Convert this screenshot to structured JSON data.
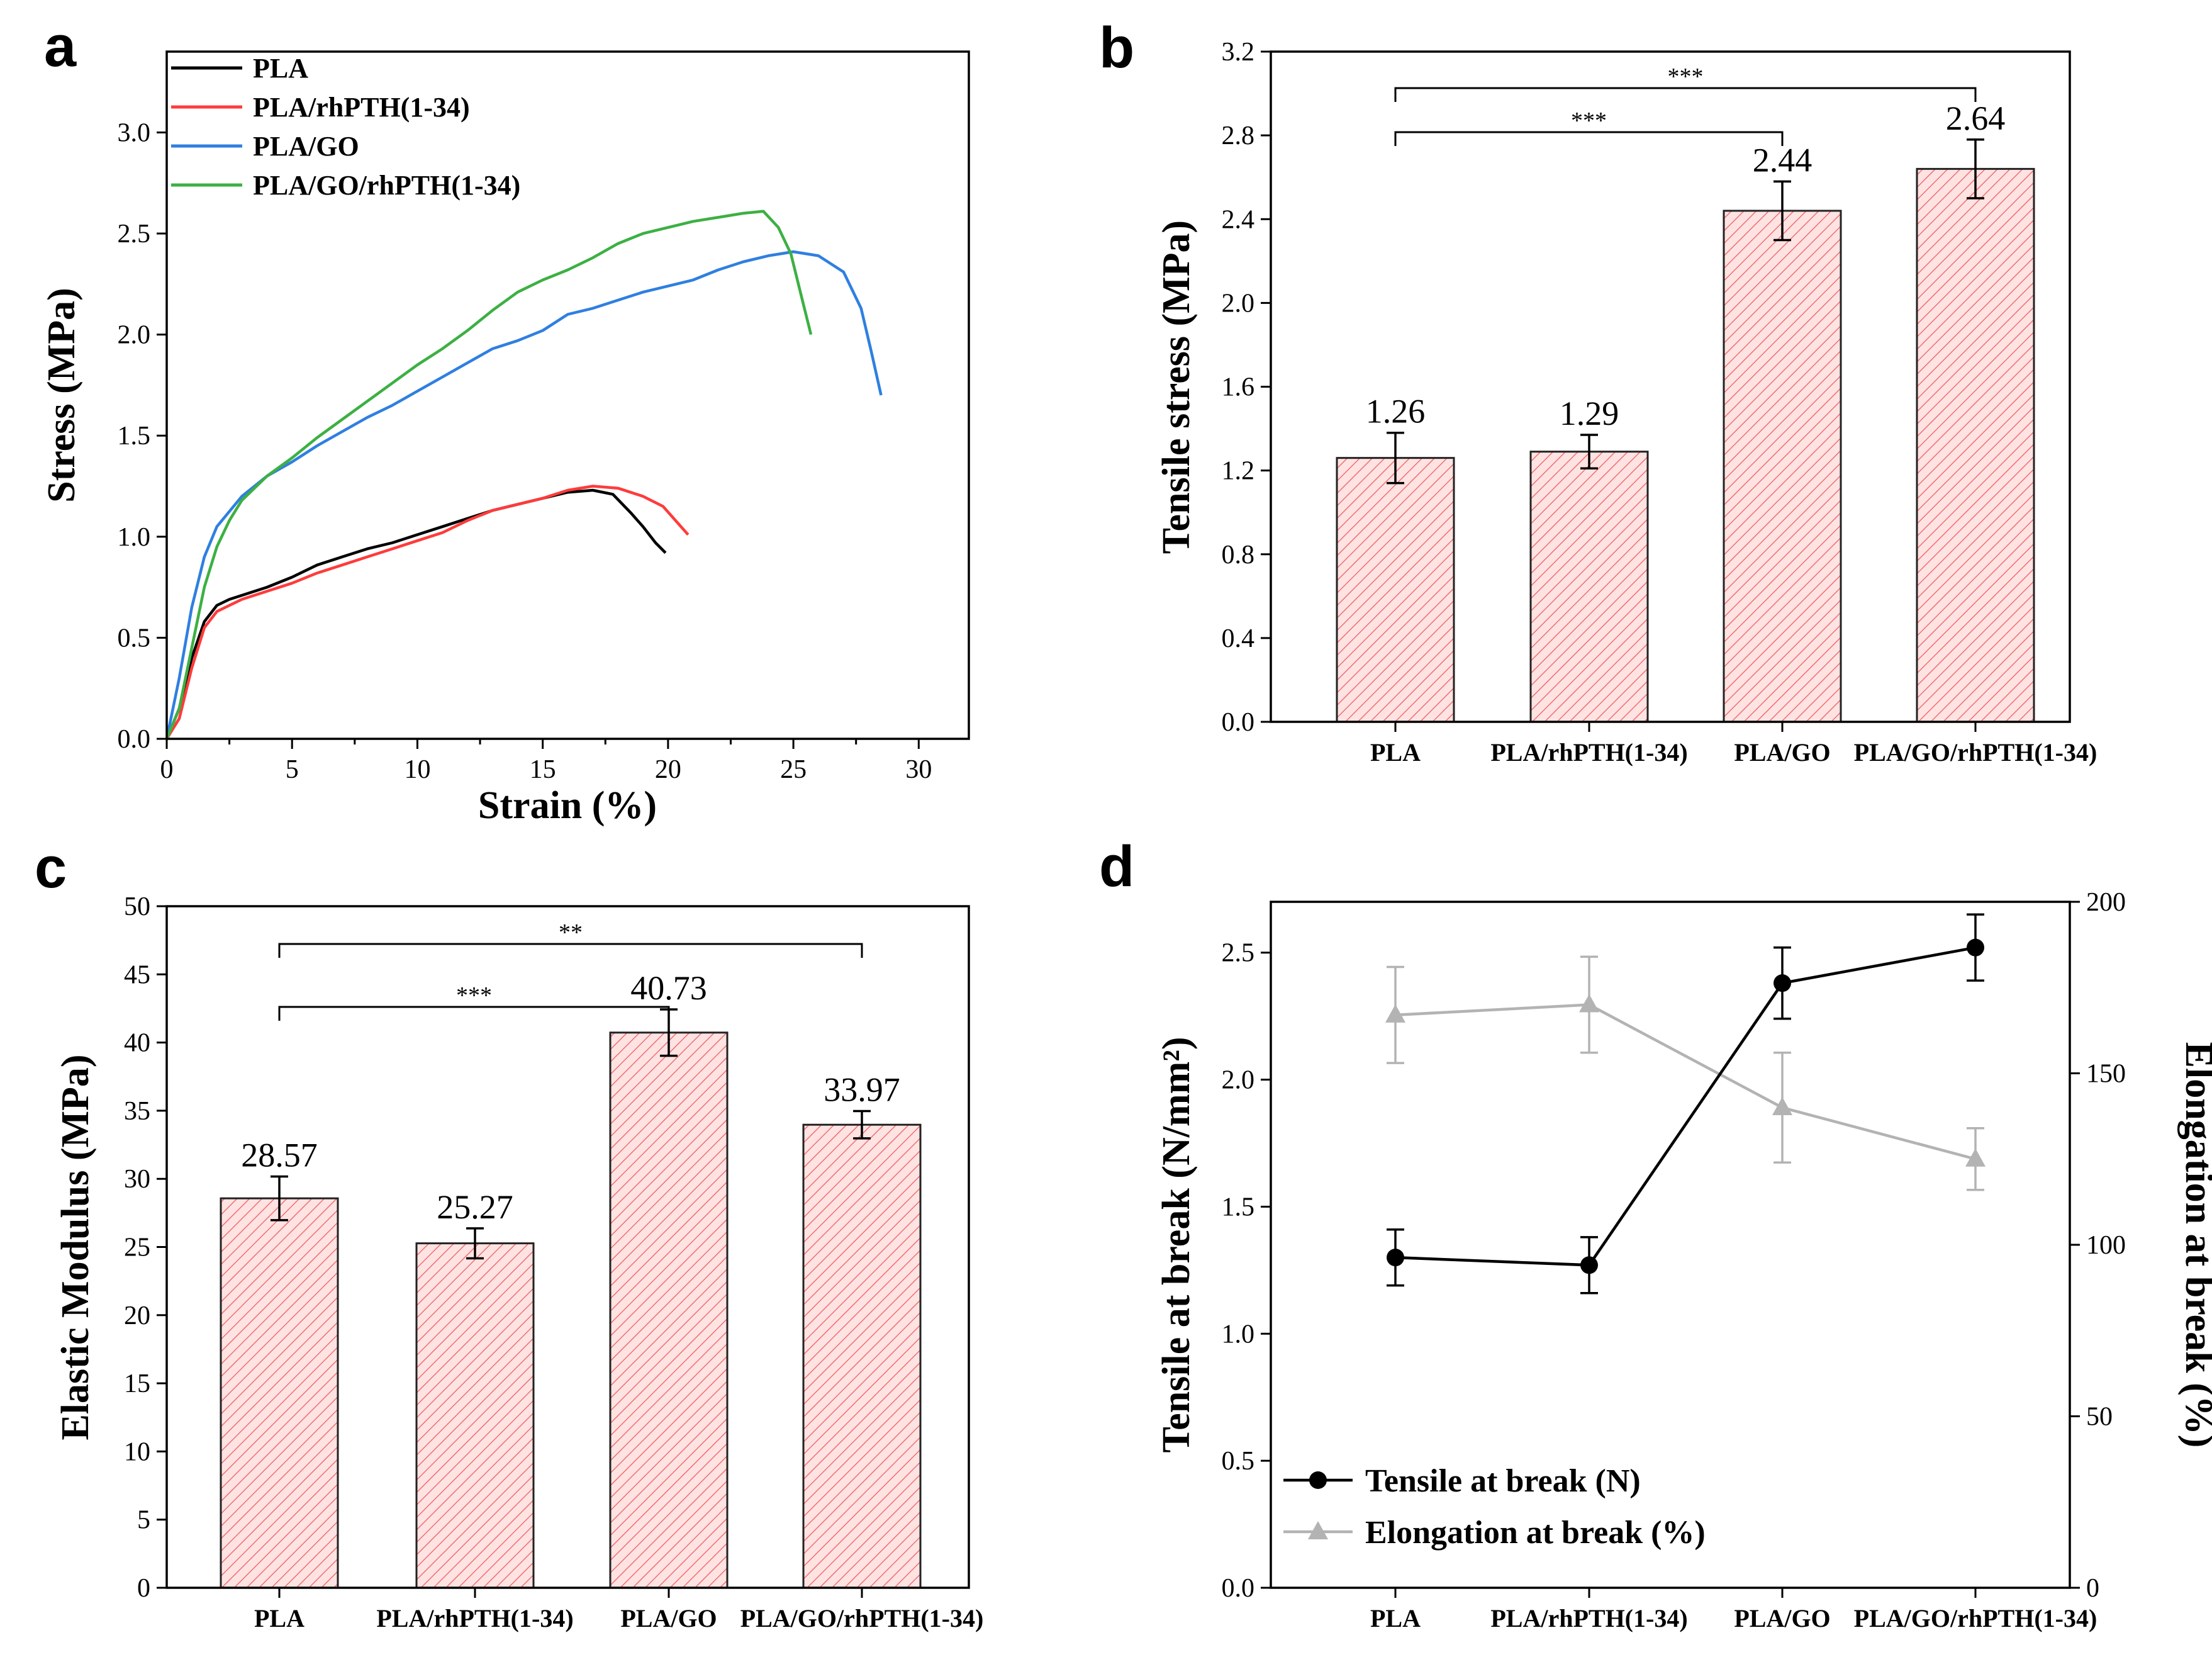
{
  "chart_data": [
    {
      "panel": "a",
      "type": "line",
      "xlabel": "Strain (%)",
      "ylabel": "Stress (MPa)",
      "xlim": [
        0,
        32
      ],
      "ylim": [
        0,
        3.4
      ],
      "xticks": [
        0,
        5,
        10,
        15,
        20,
        25,
        30
      ],
      "yticks": [
        0.0,
        0.5,
        1.0,
        1.5,
        2.0,
        2.5,
        3.0
      ],
      "legend_position": "top-left",
      "series": [
        {
          "name": "PLA",
          "color": "#000000",
          "x": [
            0,
            0.5,
            1,
            1.5,
            2,
            2.5,
            3,
            4,
            5,
            6,
            7,
            8,
            9,
            10,
            11,
            12,
            13,
            14,
            15,
            16,
            17,
            17.8,
            18.5,
            19,
            19.5,
            19.9
          ],
          "y": [
            0,
            0.15,
            0.4,
            0.58,
            0.66,
            0.69,
            0.71,
            0.75,
            0.8,
            0.86,
            0.9,
            0.94,
            0.97,
            1.01,
            1.05,
            1.09,
            1.13,
            1.16,
            1.19,
            1.22,
            1.23,
            1.21,
            1.12,
            1.05,
            0.97,
            0.92
          ]
        },
        {
          "name": "PLA/rhPTH(1-34)",
          "color": "#ff3b3b",
          "x": [
            0,
            0.5,
            1,
            1.5,
            2,
            2.5,
            3,
            4,
            5,
            6,
            7,
            8,
            9,
            10,
            11,
            12,
            13,
            14,
            15,
            16,
            17,
            18,
            19,
            19.8,
            20.3,
            20.8
          ],
          "y": [
            0,
            0.1,
            0.35,
            0.55,
            0.63,
            0.66,
            0.69,
            0.73,
            0.77,
            0.82,
            0.86,
            0.9,
            0.94,
            0.98,
            1.02,
            1.08,
            1.13,
            1.16,
            1.19,
            1.23,
            1.25,
            1.24,
            1.2,
            1.15,
            1.08,
            1.01
          ]
        },
        {
          "name": "PLA/GO",
          "color": "#2f7fe0",
          "x": [
            0,
            0.5,
            1,
            1.5,
            2,
            3,
            4,
            5,
            6,
            7,
            8,
            9,
            10,
            11,
            12,
            13,
            14,
            15,
            16,
            17,
            18,
            19,
            20,
            21,
            22,
            23,
            24,
            25,
            26,
            27,
            27.7,
            28.1,
            28.5
          ],
          "y": [
            0,
            0.3,
            0.65,
            0.9,
            1.05,
            1.2,
            1.3,
            1.37,
            1.45,
            1.52,
            1.59,
            1.65,
            1.72,
            1.79,
            1.86,
            1.93,
            1.97,
            2.02,
            2.1,
            2.13,
            2.17,
            2.21,
            2.24,
            2.27,
            2.32,
            2.36,
            2.39,
            2.41,
            2.39,
            2.31,
            2.13,
            1.92,
            1.7
          ]
        },
        {
          "name": "PLA/GO/rhPTH(1-34)",
          "color": "#3cb043",
          "x": [
            0,
            0.5,
            1,
            1.5,
            2,
            2.5,
            3,
            4,
            5,
            6,
            7,
            8,
            9,
            10,
            11,
            12,
            13,
            14,
            15,
            16,
            17,
            18,
            19,
            20,
            21,
            22,
            23,
            23.8,
            24.4,
            24.9,
            25.3,
            25.7
          ],
          "y": [
            0,
            0.15,
            0.45,
            0.75,
            0.95,
            1.08,
            1.18,
            1.3,
            1.39,
            1.49,
            1.58,
            1.67,
            1.76,
            1.85,
            1.93,
            2.02,
            2.12,
            2.21,
            2.27,
            2.32,
            2.38,
            2.45,
            2.5,
            2.53,
            2.56,
            2.58,
            2.6,
            2.61,
            2.53,
            2.4,
            2.2,
            2.0
          ]
        }
      ]
    },
    {
      "panel": "b",
      "type": "bar",
      "ylabel": "Tensile stress (MPa)",
      "ylim": [
        0,
        3.2
      ],
      "yticks": [
        "0.0",
        "0.4",
        "0.8",
        "1.2",
        "1.6",
        "2.0",
        "2.4",
        "2.8",
        "3.2"
      ],
      "categories": [
        "PLA",
        "PLA/rhPTH(1-34)",
        "PLA/GO",
        "PLA/GO/rhPTH(1-34)"
      ],
      "values": [
        1.26,
        1.29,
        2.44,
        2.64
      ],
      "labels": [
        "1.26",
        "1.29",
        "2.44",
        "2.64"
      ],
      "errors": [
        0.12,
        0.08,
        0.14,
        0.14
      ],
      "significance": [
        {
          "from": 0,
          "to": 2,
          "label": "***"
        },
        {
          "from": 0,
          "to": 3,
          "label": "***"
        }
      ]
    },
    {
      "panel": "c",
      "type": "bar",
      "ylabel": "Elastic Modulus (MPa)",
      "ylim": [
        0,
        50
      ],
      "yticks": [
        "0",
        "5",
        "10",
        "15",
        "20",
        "25",
        "30",
        "35",
        "40",
        "45",
        "50"
      ],
      "categories": [
        "PLA",
        "PLA/rhPTH(1-34)",
        "PLA/GO",
        "PLA/GO/rhPTH(1-34)"
      ],
      "values": [
        28.57,
        25.27,
        40.73,
        33.97
      ],
      "labels": [
        "28.57",
        "25.27",
        "40.73",
        "33.97"
      ],
      "errors": [
        1.6,
        1.1,
        1.7,
        1.0
      ],
      "significance": [
        {
          "from": 0,
          "to": 2,
          "label": "***"
        },
        {
          "from": 0,
          "to": 3,
          "label": "**"
        }
      ]
    },
    {
      "panel": "d",
      "type": "line",
      "categories": [
        "PLA",
        "PLA/rhPTH(1-34)",
        "PLA/GO",
        "PLA/GO/rhPTH(1-34)"
      ],
      "ylabel": "Tensile at break (N/mm²)",
      "ylabel_right": "Elongation at break (%)",
      "ylim": [
        0,
        2.7
      ],
      "ylim_right": [
        0,
        200
      ],
      "yticks": [
        "0.0",
        "0.5",
        "1.0",
        "1.5",
        "2.0",
        "2.5"
      ],
      "yticks_right": [
        "0",
        "50",
        "100",
        "150",
        "200"
      ],
      "legend_position": "bottom-left",
      "series": [
        {
          "name": "Tensile at break (N)",
          "axis": "left",
          "color": "#000000",
          "marker": "circle",
          "values": [
            1.3,
            1.27,
            2.38,
            2.52
          ],
          "errors": [
            0.11,
            0.11,
            0.14,
            0.13
          ]
        },
        {
          "name": "Elongation at break (%)",
          "axis": "right",
          "color": "#b3b3b3",
          "marker": "triangle",
          "values": [
            167,
            170,
            140,
            125
          ],
          "errors": [
            14,
            14,
            16,
            9
          ]
        }
      ]
    }
  ],
  "panel_letters": {
    "a": "a",
    "b": "b",
    "c": "c",
    "d": "d"
  },
  "colors": {
    "bar_fill": "#ffe3e3",
    "hatch": "#ef6f6f"
  }
}
